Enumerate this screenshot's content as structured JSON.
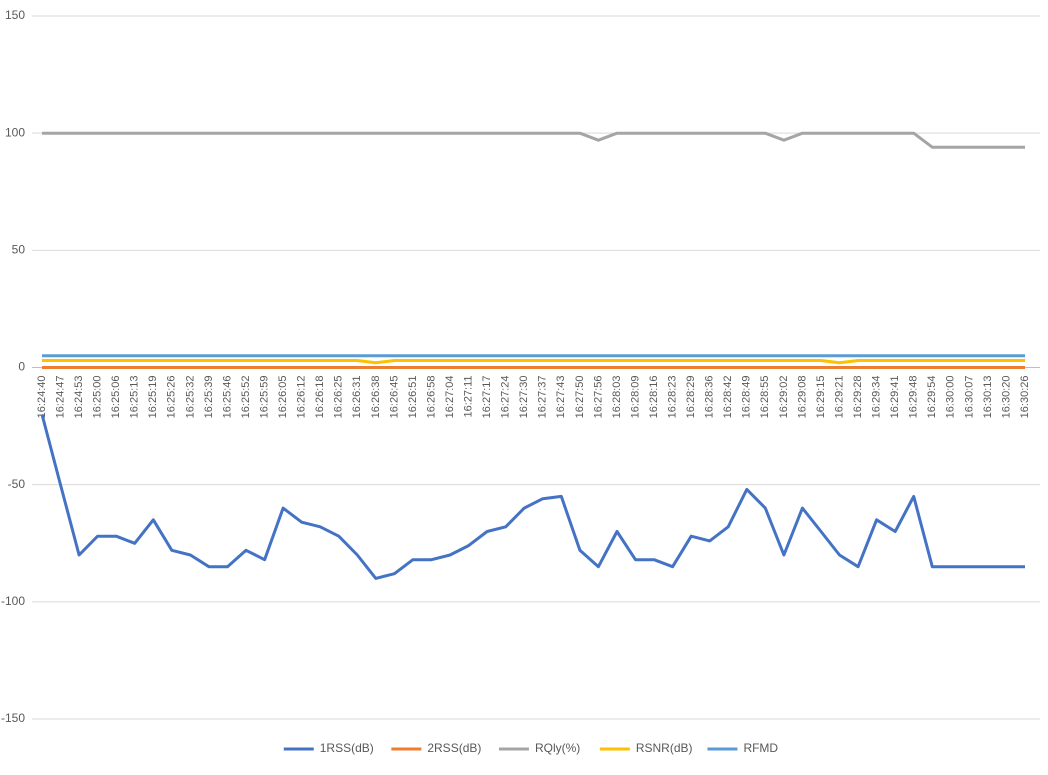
{
  "chart_data": {
    "type": "line",
    "categories": [
      "16:24:40",
      "16:24:47",
      "16:24:53",
      "16:25:00",
      "16:25:06",
      "16:25:13",
      "16:25:19",
      "16:25:26",
      "16:25:32",
      "16:25:39",
      "16:25:46",
      "16:25:52",
      "16:25:59",
      "16:26:05",
      "16:26:12",
      "16:26:18",
      "16:26:25",
      "16:26:31",
      "16:26:38",
      "16:26:45",
      "16:26:51",
      "16:26:58",
      "16:27:04",
      "16:27:11",
      "16:27:17",
      "16:27:24",
      "16:27:30",
      "16:27:37",
      "16:27:43",
      "16:27:50",
      "16:27:56",
      "16:28:03",
      "16:28:09",
      "16:28:16",
      "16:28:23",
      "16:28:29",
      "16:28:36",
      "16:28:42",
      "16:28:49",
      "16:28:55",
      "16:29:02",
      "16:29:08",
      "16:29:15",
      "16:29:21",
      "16:29:28",
      "16:29:34",
      "16:29:41",
      "16:29:48",
      "16:29:54",
      "16:30:00",
      "16:30:07",
      "16:30:13",
      "16:30:20",
      "16:30:26"
    ],
    "series": [
      {
        "name": "1RSS(dB)",
        "color": "#4472c4",
        "values": [
          -20,
          -50,
          -80,
          -72,
          -72,
          -75,
          -65,
          -78,
          -80,
          -85,
          -85,
          -78,
          -82,
          -60,
          -66,
          -68,
          -72,
          -80,
          -90,
          -88,
          -82,
          -82,
          -80,
          -76,
          -70,
          -68,
          -60,
          -56,
          -55,
          -78,
          -85,
          -70,
          -82,
          -82,
          -85,
          -72,
          -74,
          -68,
          -52,
          -60,
          -80,
          -60,
          -70,
          -80,
          -85,
          -65,
          -70,
          -55,
          -85,
          -85,
          -85,
          -85,
          -85,
          -85
        ]
      },
      {
        "name": "2RSS(dB)",
        "color": "#ed7d31",
        "values": [
          0,
          0,
          0,
          0,
          0,
          0,
          0,
          0,
          0,
          0,
          0,
          0,
          0,
          0,
          0,
          0,
          0,
          0,
          0,
          0,
          0,
          0,
          0,
          0,
          0,
          0,
          0,
          0,
          0,
          0,
          0,
          0,
          0,
          0,
          0,
          0,
          0,
          0,
          0,
          0,
          0,
          0,
          0,
          0,
          0,
          0,
          0,
          0,
          0,
          0,
          0,
          0,
          0,
          0
        ]
      },
      {
        "name": "RQly(%)",
        "color": "#a5a5a5",
        "values": [
          100,
          100,
          100,
          100,
          100,
          100,
          100,
          100,
          100,
          100,
          100,
          100,
          100,
          100,
          100,
          100,
          100,
          100,
          100,
          100,
          100,
          100,
          100,
          100,
          100,
          100,
          100,
          100,
          100,
          100,
          97,
          100,
          100,
          100,
          100,
          100,
          100,
          100,
          100,
          100,
          97,
          100,
          100,
          100,
          100,
          100,
          100,
          100,
          94,
          94,
          94,
          94,
          94,
          94
        ]
      },
      {
        "name": "RSNR(dB)",
        "color": "#ffc000",
        "values": [
          3,
          3,
          3,
          3,
          3,
          3,
          3,
          3,
          3,
          3,
          3,
          3,
          3,
          3,
          3,
          3,
          3,
          3,
          2,
          3,
          3,
          3,
          3,
          3,
          3,
          3,
          3,
          3,
          3,
          3,
          3,
          3,
          3,
          3,
          3,
          3,
          3,
          3,
          3,
          3,
          3,
          3,
          3,
          2,
          3,
          3,
          3,
          3,
          3,
          3,
          3,
          3,
          3,
          3
        ]
      },
      {
        "name": "RFMD",
        "color": "#5b9bd5",
        "values": [
          5,
          5,
          5,
          5,
          5,
          5,
          5,
          5,
          5,
          5,
          5,
          5,
          5,
          5,
          5,
          5,
          5,
          5,
          5,
          5,
          5,
          5,
          5,
          5,
          5,
          5,
          5,
          5,
          5,
          5,
          5,
          5,
          5,
          5,
          5,
          5,
          5,
          5,
          5,
          5,
          5,
          5,
          5,
          5,
          5,
          5,
          5,
          5,
          5,
          5,
          5,
          5,
          5,
          5
        ]
      }
    ],
    "ylim": [
      -150,
      150
    ],
    "yticks": [
      -150,
      -100,
      -50,
      0,
      50,
      100,
      150
    ],
    "grid": true,
    "legend": "bottom"
  }
}
